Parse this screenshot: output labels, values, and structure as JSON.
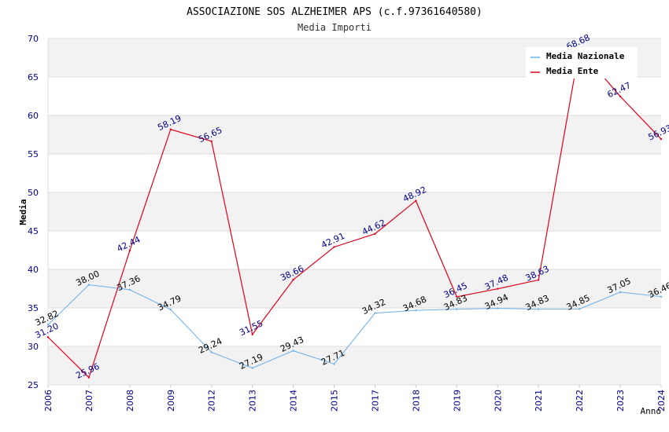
{
  "title": "ASSOCIAZIONE SOS ALZHEIMER APS (c.f.97361640580)",
  "subtitle": "Media Importi",
  "colors": {
    "nazionale": "#6aaee8",
    "ente": "#e0001a",
    "axis_labels": "#00008b",
    "band": "#f2f2f2",
    "grid": "#dcdcdc"
  },
  "chart_data": {
    "type": "line",
    "title": "ASSOCIAZIONE SOS ALZHEIMER APS (c.f.97361640580)",
    "subtitle": "Media Importi",
    "xlabel": "Anno",
    "ylabel": "Media",
    "ylim": [
      25,
      70
    ],
    "yticks": [
      25,
      30,
      35,
      40,
      45,
      50,
      55,
      60,
      65,
      70
    ],
    "grid": true,
    "legend_position": "top-right",
    "categories": [
      "2006",
      "2007",
      "2008",
      "2009",
      "2012",
      "2013",
      "2014",
      "2015",
      "2017",
      "2018",
      "2019",
      "2020",
      "2021",
      "2022",
      "2023",
      "2024"
    ],
    "series": [
      {
        "name": "Media Nazionale",
        "color": "#6aaee8",
        "values": [
          32.82,
          38.0,
          37.36,
          34.79,
          29.24,
          27.19,
          29.43,
          27.71,
          34.32,
          34.68,
          34.83,
          34.94,
          34.83,
          34.85,
          37.05,
          36.46
        ],
        "labels": [
          "32.82",
          "38.00",
          "37.36",
          "34.79",
          "29.24",
          "27.19",
          "29.43",
          "27.71",
          "34.32",
          "34.68",
          "34.83",
          "34.94",
          "34.83",
          "34.85",
          "37.05",
          "36.46"
        ]
      },
      {
        "name": "Media Ente",
        "color": "#e0001a",
        "values": [
          31.2,
          25.96,
          42.44,
          58.19,
          56.65,
          31.55,
          38.66,
          42.91,
          44.62,
          48.92,
          36.45,
          37.48,
          38.63,
          68.68,
          62.47,
          56.93
        ],
        "labels": [
          "31.20",
          "25.96",
          "42.44",
          "58.19",
          "56.65",
          "31.55",
          "38.66",
          "42.91",
          "44.62",
          "48.92",
          "36.45",
          "37.48",
          "38.63",
          "68.68",
          "62.47",
          "56.93"
        ]
      }
    ]
  }
}
